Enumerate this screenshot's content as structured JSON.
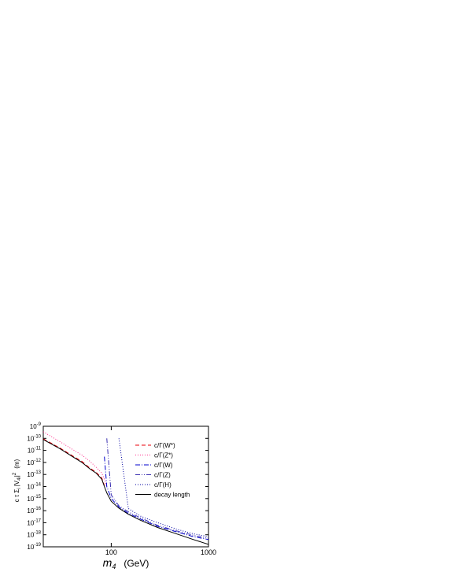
{
  "chart_data": {
    "type": "line",
    "x": [
      20,
      30,
      40,
      50,
      60,
      70,
      80,
      85,
      90,
      100,
      120,
      150,
      200,
      300,
      500,
      700,
      1000
    ],
    "xlim": [
      20,
      1000
    ],
    "xticks": [
      100,
      1000
    ],
    "xscale": "log",
    "ylim": [
      1e-19,
      1e-09
    ],
    "yscale": "log",
    "yticks": [
      {
        "value": 1e-09,
        "label": "10",
        "exponent": "-9"
      },
      {
        "value": 1e-10,
        "label": "10",
        "exponent": "-10"
      },
      {
        "value": 1e-11,
        "label": "10",
        "exponent": "-11"
      },
      {
        "value": 1e-12,
        "label": "10",
        "exponent": "-12"
      },
      {
        "value": 1e-13,
        "label": "10",
        "exponent": "-13"
      },
      {
        "value": 1e-14,
        "label": "10",
        "exponent": "-14"
      },
      {
        "value": 1e-15,
        "label": "10",
        "exponent": "-15"
      },
      {
        "value": 1e-16,
        "label": "10",
        "exponent": "-16"
      },
      {
        "value": 1e-17,
        "label": "10",
        "exponent": "-17"
      },
      {
        "value": 1e-18,
        "label": "10",
        "exponent": "-18"
      },
      {
        "value": 1e-19,
        "label": "10",
        "exponent": "-19"
      }
    ],
    "xlabel_parts": [
      "m",
      "4",
      "(GeV)"
    ],
    "ylabel_parts": [
      "c τ Σ",
      "i",
      "|V",
      "4i",
      "|",
      "2",
      "(m)"
    ],
    "series": [
      {
        "name": "c/Γ(W*)",
        "color": "#e8000b",
        "style": "dashed",
        "values": [
          9e-11,
          1.5e-11,
          3.5e-12,
          1.2e-12,
          3.5e-13,
          1.5e-13,
          5e-14,
          1.2e-14,
          null,
          null,
          null,
          null,
          null,
          null,
          null,
          null,
          null
        ]
      },
      {
        "name": "c/Γ(Z*)",
        "color": "#ff2a8a",
        "style": "dotted",
        "values": [
          3.5e-10,
          5e-11,
          1.2e-11,
          4e-12,
          1.3e-12,
          4e-13,
          1.3e-13,
          4e-14,
          1e-14,
          null,
          null,
          null,
          null,
          null,
          null,
          null,
          null
        ]
      },
      {
        "name": "c/Γ(W)",
        "color": "#0000cc",
        "style": "dashdot",
        "values": [
          null,
          null,
          null,
          null,
          null,
          null,
          null,
          3e-12,
          1e-14,
          1e-15,
          2e-16,
          6e-17,
          2e-17,
          5e-18,
          1.5e-18,
          7e-19,
          4e-19
        ]
      },
      {
        "name": "c/Γ(Z)",
        "color": "#3a2fb0",
        "style": "dashdotdot",
        "values": [
          null,
          null,
          null,
          null,
          null,
          null,
          null,
          null,
          1e-10,
          2e-15,
          2.5e-16,
          8e-17,
          2.5e-17,
          6e-18,
          1.8e-18,
          9e-19,
          5e-19
        ]
      },
      {
        "name": "c/Γ(H)",
        "color": "#0000a0",
        "style": "dotted",
        "values": [
          null,
          null,
          null,
          null,
          null,
          null,
          null,
          null,
          null,
          null,
          1e-10,
          1.5e-16,
          3.5e-17,
          1e-17,
          2.5e-18,
          1.2e-18,
          7e-19
        ]
      },
      {
        "name": "decay length",
        "color": "#000000",
        "style": "solid",
        "values": [
          8e-11,
          1.3e-11,
          3e-12,
          1e-12,
          3e-13,
          1.3e-13,
          4e-14,
          1e-14,
          3e-15,
          6e-16,
          1.6e-16,
          5e-17,
          1.6e-17,
          4e-18,
          1e-18,
          4e-19,
          1.6e-19
        ]
      }
    ]
  }
}
